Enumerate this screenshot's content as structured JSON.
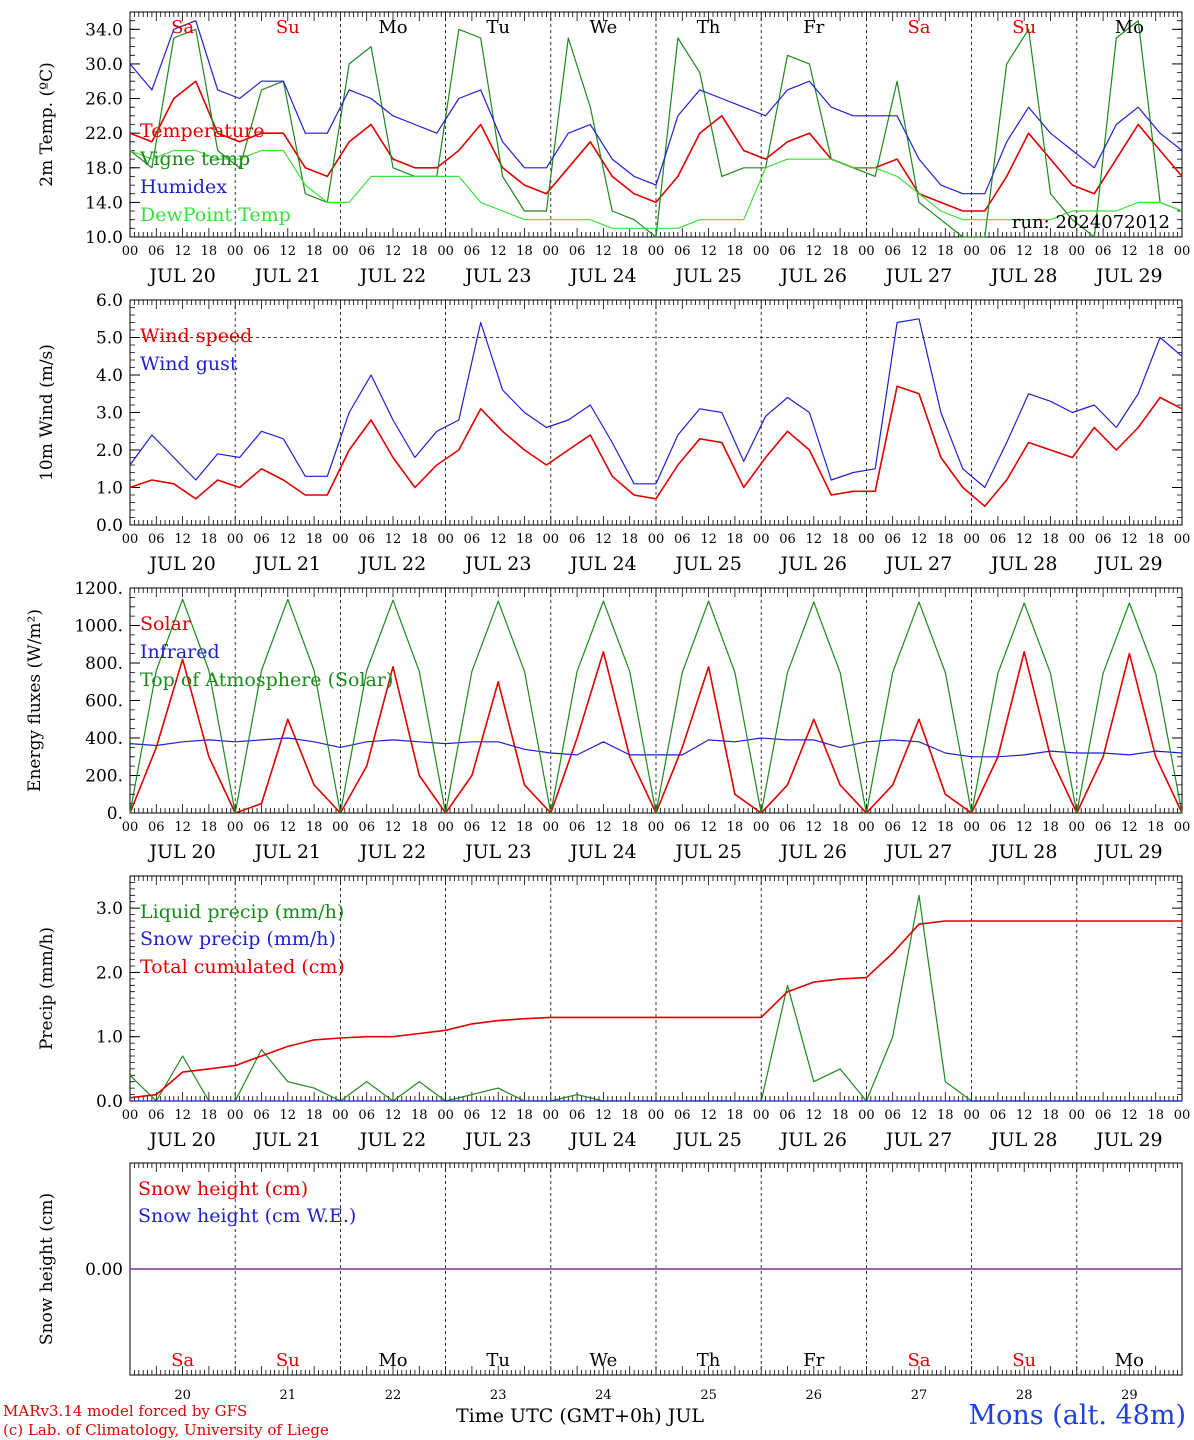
{
  "run_label": "run: 2024072012",
  "x_axis": {
    "hour_labels": [
      "00",
      "06",
      "12",
      "18"
    ],
    "end_label": "00",
    "date_labels": [
      "JUL 20",
      "JUL 21",
      "JUL 22",
      "JUL 23",
      "JUL 24",
      "JUL 25",
      "JUL 26",
      "JUL 27",
      "JUL 28",
      "JUL 29"
    ],
    "weekdays": [
      "Sa",
      "Su",
      "Mo",
      "Tu",
      "We",
      "Th",
      "Fr",
      "Sa",
      "Su",
      "Mo"
    ],
    "weekend_indices": [
      0,
      1,
      7,
      8
    ],
    "day_numbers": [
      "20",
      "21",
      "22",
      "23",
      "24",
      "25",
      "26",
      "27",
      "28",
      "29"
    ],
    "title": "Time UTC (GMT+0h) JUL"
  },
  "colors": {
    "red": "#e00000",
    "green": "#1a8a1a",
    "blue": "#1f1fd0",
    "lightgreen": "#3ce03c",
    "purple": "#8040a0"
  },
  "footer": {
    "credit_line1": "MARv3.14 model forced by GFS",
    "credit_line2": "(c) Lab. of Climatology, University of Liege",
    "station": "Mons (alt. 48m)"
  },
  "chart_data": [
    {
      "type": "line",
      "ylabel": "2m Temp. (ºC)",
      "ylim": [
        10,
        36
      ],
      "yticks": [
        "10.0",
        "14.0",
        "18.0",
        "22.0",
        "26.0",
        "30.0",
        "34.0"
      ],
      "grid": "vertical dashed at midnight",
      "legend_placement": "left",
      "x": "hours since Jul 20 00 UTC, step 6",
      "series": [
        {
          "name": "Temperature",
          "color": "red",
          "values": [
            22,
            21,
            26,
            28,
            22,
            21,
            22,
            22,
            18,
            17,
            21,
            23,
            19,
            18,
            18,
            20,
            23,
            18,
            16,
            15,
            18,
            21,
            17,
            15,
            14,
            17,
            22,
            24,
            20,
            19,
            21,
            22,
            19,
            18,
            18,
            19,
            15,
            14,
            13,
            13,
            17,
            22,
            19,
            16,
            15,
            19,
            23,
            20,
            17
          ]
        },
        {
          "name": "Vigne temp",
          "color": "green",
          "values": [
            20,
            18,
            33,
            34,
            20,
            18,
            27,
            28,
            15,
            14,
            30,
            32,
            18,
            17,
            17,
            34,
            33,
            17,
            13,
            13,
            33,
            25,
            13,
            12,
            10,
            33,
            29,
            17,
            18,
            18,
            31,
            30,
            19,
            18,
            17,
            28,
            14,
            12,
            10,
            10,
            30,
            34,
            15,
            12,
            10,
            33,
            35,
            14,
            13
          ]
        },
        {
          "name": "Humidex",
          "color": "blue",
          "values": [
            30,
            27,
            34,
            35,
            27,
            26,
            28,
            28,
            22,
            22,
            27,
            26,
            24,
            23,
            22,
            26,
            27,
            21,
            18,
            18,
            22,
            23,
            19,
            17,
            16,
            24,
            27,
            26,
            25,
            24,
            27,
            28,
            25,
            24,
            24,
            24,
            19,
            16,
            15,
            15,
            21,
            25,
            22,
            20,
            18,
            23,
            25,
            22,
            20
          ]
        },
        {
          "name": "DewPoint Temp",
          "color": "lightgreen",
          "values": [
            20,
            19,
            20,
            20,
            19,
            19,
            20,
            20,
            16,
            14,
            14,
            17,
            17,
            17,
            17,
            17,
            14,
            13,
            12,
            12,
            12,
            12,
            11,
            11,
            11,
            11,
            12,
            12,
            12,
            18,
            19,
            19,
            19,
            18,
            18,
            17,
            15,
            13,
            12,
            12,
            12,
            12,
            12,
            13,
            13,
            13,
            14,
            14,
            13
          ]
        }
      ]
    },
    {
      "type": "line",
      "ylabel": "10m Wind (m/s)",
      "ylim": [
        0,
        6
      ],
      "yticks": [
        "0.0",
        "1.0",
        "2.0",
        "3.0",
        "4.0",
        "5.0",
        "6.0"
      ],
      "reference_line": 5.0,
      "legend_placement": "left",
      "series": [
        {
          "name": "Wind speed",
          "color": "red",
          "values": [
            1.0,
            1.2,
            1.1,
            0.7,
            1.2,
            1.0,
            1.5,
            1.2,
            0.8,
            0.8,
            2.0,
            2.8,
            1.8,
            1.0,
            1.6,
            2.0,
            3.1,
            2.5,
            2.0,
            1.6,
            2.0,
            2.4,
            1.3,
            0.8,
            0.7,
            1.6,
            2.3,
            2.2,
            1.0,
            1.8,
            2.5,
            2.0,
            0.8,
            0.9,
            0.9,
            3.7,
            3.5,
            1.8,
            1.0,
            0.5,
            1.2,
            2.2,
            2.0,
            1.8,
            2.6,
            2.0,
            2.6,
            3.4,
            3.1
          ]
        },
        {
          "name": "Wind gust",
          "color": "blue",
          "values": [
            1.6,
            2.4,
            1.8,
            1.2,
            1.9,
            1.8,
            2.5,
            2.3,
            1.3,
            1.3,
            3.0,
            4.0,
            2.8,
            1.8,
            2.5,
            2.8,
            5.4,
            3.6,
            3.0,
            2.6,
            2.8,
            3.2,
            2.2,
            1.1,
            1.1,
            2.4,
            3.1,
            3.0,
            1.7,
            2.9,
            3.4,
            3.0,
            1.2,
            1.4,
            1.5,
            5.4,
            5.5,
            3.0,
            1.5,
            1.0,
            2.2,
            3.5,
            3.3,
            3.0,
            3.2,
            2.6,
            3.5,
            5.0,
            4.5
          ]
        }
      ]
    },
    {
      "type": "line",
      "ylabel": "Energy fluxes (W/m²)",
      "ylim": [
        0,
        1200
      ],
      "yticks": [
        "0.",
        "200.",
        "400.",
        "600.",
        "800.",
        "1000.",
        "1200."
      ],
      "legend_placement": "left",
      "series": [
        {
          "name": "Solar",
          "color": "red",
          "values": [
            0,
            350,
            820,
            300,
            0,
            50,
            500,
            150,
            0,
            250,
            780,
            200,
            0,
            200,
            700,
            150,
            0,
            400,
            860,
            300,
            0,
            350,
            780,
            100,
            0,
            150,
            500,
            150,
            0,
            150,
            500,
            100,
            0,
            300,
            860,
            300,
            0,
            300,
            850,
            300,
            0
          ]
        },
        {
          "name": "Infrared",
          "color": "blue",
          "values": [
            370,
            360,
            380,
            390,
            380,
            390,
            400,
            380,
            350,
            380,
            390,
            380,
            370,
            380,
            380,
            340,
            320,
            310,
            380,
            310,
            310,
            310,
            390,
            380,
            400,
            390,
            390,
            350,
            380,
            390,
            380,
            320,
            300,
            300,
            310,
            330,
            320,
            320,
            310,
            330,
            320
          ]
        },
        {
          "name": "Top of Atmosphere (Solar)",
          "color": "green",
          "values": [
            0,
            760,
            1140,
            760,
            0,
            760,
            1140,
            760,
            0,
            760,
            1135,
            755,
            0,
            755,
            1130,
            755,
            0,
            755,
            1130,
            755,
            0,
            750,
            1130,
            750,
            0,
            750,
            1125,
            750,
            0,
            750,
            1125,
            750,
            0,
            745,
            1120,
            745,
            0,
            745,
            1120,
            745,
            0
          ]
        }
      ]
    },
    {
      "type": "line",
      "ylabel": "Precip (mm/h)",
      "ylim": [
        0,
        3.5
      ],
      "yticks": [
        "0.0",
        "1.0",
        "2.0",
        "3.0"
      ],
      "legend_placement": "left",
      "series": [
        {
          "name": "Liquid precip (mm/h)",
          "color": "green",
          "values": [
            0.4,
            0.0,
            0.7,
            0.0,
            0.0,
            0.8,
            0.3,
            0.2,
            0.0,
            0.3,
            0.0,
            0.3,
            0.0,
            0.1,
            0.2,
            0.0,
            0.0,
            0.1,
            0.0,
            0.0,
            0.0,
            0.0,
            0.0,
            0.0,
            0.0,
            1.8,
            0.3,
            0.5,
            0.0,
            1.0,
            3.2,
            0.3,
            0.0,
            0.0,
            0.0,
            0.0,
            0.0,
            0.0,
            0.0,
            0.0,
            0.0
          ]
        },
        {
          "name": "Snow precip (mm/h)",
          "color": "blue",
          "values": [
            0,
            0,
            0,
            0,
            0,
            0,
            0,
            0,
            0,
            0,
            0,
            0,
            0,
            0,
            0,
            0,
            0,
            0,
            0,
            0,
            0,
            0,
            0,
            0,
            0,
            0,
            0,
            0,
            0,
            0,
            0,
            0,
            0,
            0,
            0,
            0,
            0,
            0,
            0,
            0,
            0
          ]
        },
        {
          "name": "Total cumulated (cm)",
          "color": "red",
          "values": [
            0.05,
            0.1,
            0.45,
            0.5,
            0.55,
            0.7,
            0.85,
            0.95,
            0.98,
            1.0,
            1.0,
            1.05,
            1.1,
            1.2,
            1.25,
            1.28,
            1.3,
            1.3,
            1.3,
            1.3,
            1.3,
            1.3,
            1.3,
            1.3,
            1.3,
            1.7,
            1.85,
            1.9,
            1.92,
            2.3,
            2.75,
            2.8,
            2.8,
            2.8,
            2.8,
            2.8,
            2.8,
            2.8,
            2.8,
            2.8,
            2.8
          ]
        }
      ]
    },
    {
      "type": "line",
      "ylabel": "Snow height (cm)",
      "yticks": [
        "0.00"
      ],
      "legend_placement": "left",
      "series": [
        {
          "name": "Snow height (cm)",
          "color": "red",
          "values": [
            0,
            0
          ]
        },
        {
          "name": "Snow height (cm W.E.)",
          "color": "blue",
          "values": [
            0,
            0
          ]
        }
      ]
    }
  ]
}
